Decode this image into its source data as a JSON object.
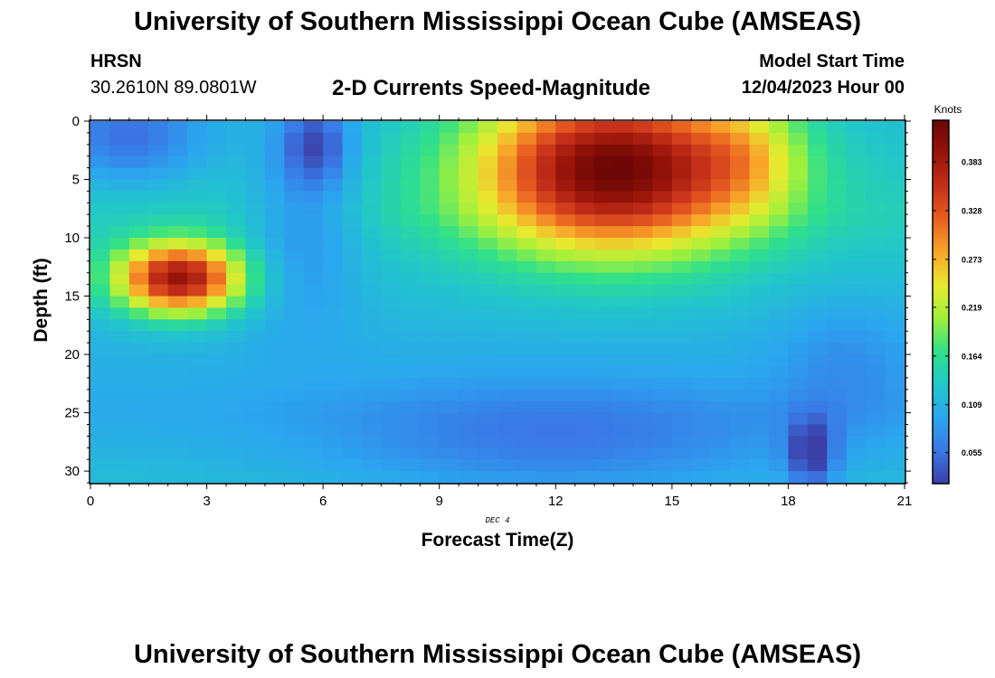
{
  "header": {
    "title": "University of Southern Mississippi Ocean Cube (AMSEAS)",
    "station": "HRSN",
    "coordinates": "30.2610N  89.0801W",
    "subtitle": "2-D Currents Speed-Magnitude",
    "model_start_label": "Model Start Time",
    "model_start_value": "12/04/2023 Hour 00"
  },
  "footer": {
    "title": "University of Southern Mississippi Ocean Cube (AMSEAS)"
  },
  "chart_data": {
    "type": "heatmap",
    "title": "2-D Currents Speed-Magnitude",
    "xlabel": "Forecast Time(Z)",
    "ylabel": "Depth (ft)",
    "x_ticks": [
      0,
      3,
      6,
      9,
      12,
      15,
      18,
      21
    ],
    "y_ticks": [
      0,
      5,
      10,
      15,
      20,
      25,
      30
    ],
    "xlim": [
      0,
      21
    ],
    "ylim": [
      0,
      31
    ],
    "date_label": "DEC 4",
    "colorbar": {
      "label": "Knots",
      "ticks": [
        "0.055",
        "0.109",
        "0.164",
        "0.219",
        "0.273",
        "0.328",
        "0.383"
      ],
      "range": [
        0.02,
        0.43
      ]
    },
    "colors": [
      "#3b3fa8",
      "#3a78e6",
      "#2aa6ef",
      "#21c7c9",
      "#2fe08a",
      "#9ef03c",
      "#e8e92e",
      "#f8a62a",
      "#e95e20",
      "#c6301a",
      "#981409",
      "#6b0606"
    ],
    "grid": {
      "time_start": 0,
      "time_step": 0.5,
      "time_count": 42,
      "depth_start": 0,
      "depth_step": 1,
      "depth_count": 31
    },
    "features": [
      {
        "name": "upper-left low",
        "t": 1.0,
        "z": 1.5,
        "st": 2.0,
        "sz": 4.0,
        "amp": -0.07
      },
      {
        "name": "mid-depth high",
        "t": 2.3,
        "z": 13.5,
        "st": 1.6,
        "sz": 3.0,
        "amp": 0.27
      },
      {
        "name": "dark column",
        "t": 5.8,
        "z": 2.0,
        "st": 0.9,
        "sz": 3.5,
        "amp": -0.08
      },
      {
        "name": "blue trough",
        "t": 5.5,
        "z": 9.0,
        "st": 1.5,
        "sz": 8.0,
        "amp": -0.05
      },
      {
        "name": "surface high",
        "t": 13.5,
        "z": 4.0,
        "st": 3.5,
        "sz": 7.0,
        "amp": 0.3
      },
      {
        "name": "surface right",
        "t": 17.0,
        "z": 3.0,
        "st": 1.5,
        "sz": 5.0,
        "amp": 0.06
      },
      {
        "name": "bottom low",
        "t": 12.0,
        "z": 27.5,
        "st": 6.0,
        "sz": 5.0,
        "amp": -0.05
      },
      {
        "name": "bottom-right dark",
        "t": 18.6,
        "z": 28.5,
        "st": 0.6,
        "sz": 3.0,
        "amp": -0.09
      },
      {
        "name": "right blue",
        "t": 19.5,
        "z": 21.0,
        "st": 1.8,
        "sz": 6.0,
        "amp": -0.03
      }
    ],
    "background_profile": [
      {
        "z": 0,
        "value": 0.12
      },
      {
        "z": 8,
        "value": 0.14
      },
      {
        "z": 18,
        "value": 0.11
      },
      {
        "z": 25,
        "value": 0.1
      },
      {
        "z": 31,
        "value": 0.12
      }
    ]
  }
}
